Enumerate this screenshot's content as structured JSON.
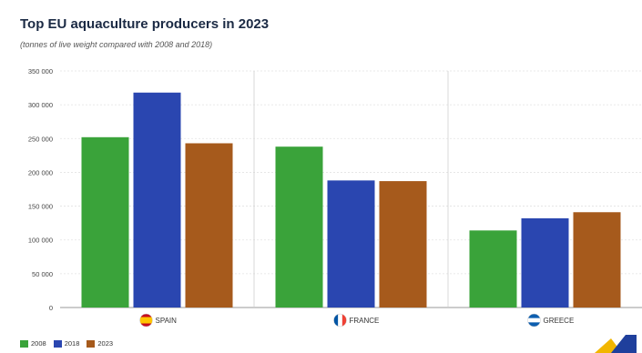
{
  "chart_data": {
    "type": "bar",
    "title": "Top EU aquaculture producers in 2023",
    "subtitle": "(tonnes of live weight compared with 2008 and 2018)",
    "categories": [
      "SPAIN",
      "FRANCE",
      "GREECE"
    ],
    "category_flags": [
      "spain-flag-icon",
      "france-flag-icon",
      "greece-flag-icon"
    ],
    "series": [
      {
        "name": "2008",
        "color": "#3aa33a",
        "values": [
          252000,
          238000,
          114000
        ]
      },
      {
        "name": "2018",
        "color": "#2a46b0",
        "values": [
          318000,
          188000,
          132000
        ]
      },
      {
        "name": "2023",
        "color": "#a65a1c",
        "values": [
          243000,
          187000,
          141000
        ]
      }
    ],
    "ylim": [
      0,
      350000
    ],
    "yticks": [
      0,
      50000,
      100000,
      150000,
      200000,
      250000,
      300000,
      350000
    ],
    "ytick_labels": [
      "0",
      "50 000",
      "100 000",
      "150 000",
      "200 000",
      "250 000",
      "300 000",
      "350 000"
    ],
    "grid": true,
    "legend_position": "bottom-left"
  }
}
